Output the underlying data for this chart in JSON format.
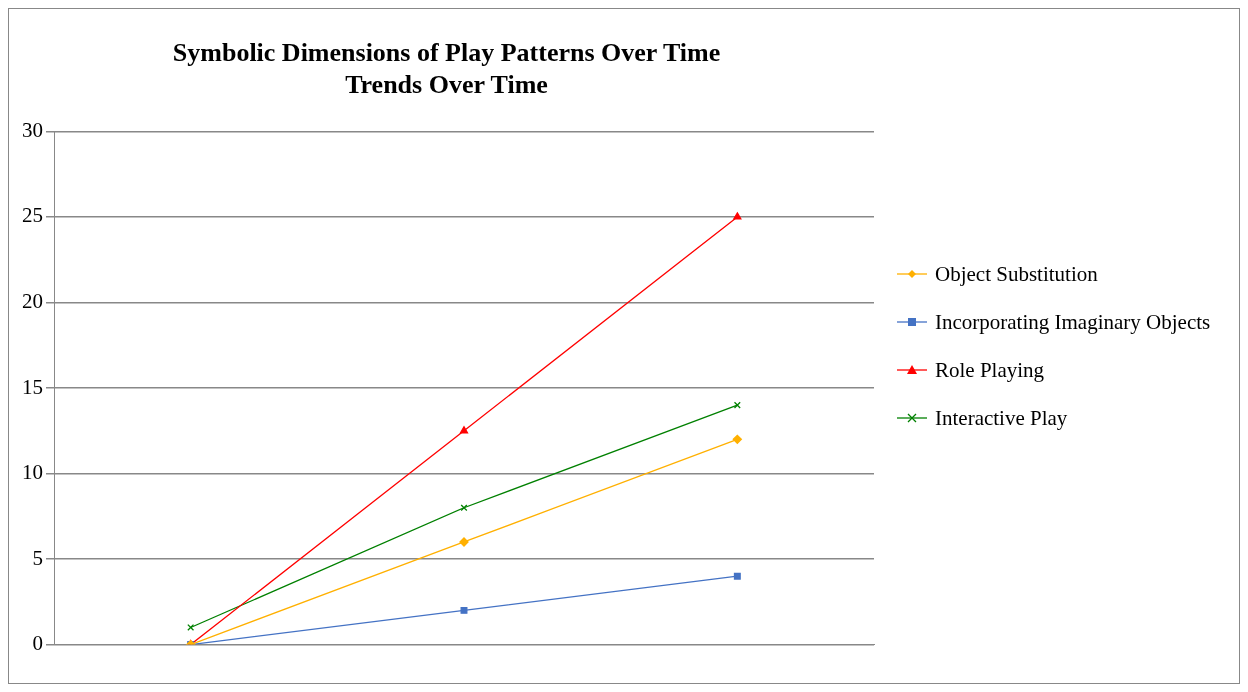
{
  "chart_data": {
    "type": "line",
    "title": "Symbolic Dimensions of Play Patterns Over Time",
    "subtitle": "Trends Over Time",
    "categories": [
      null,
      null,
      null
    ],
    "series": [
      {
        "name": "Object Substitution",
        "color": "#ffb000",
        "marker": "diamond",
        "values": [
          0,
          6,
          12
        ]
      },
      {
        "name": "Incorporating Imaginary Objects",
        "color": "#4472c4",
        "marker": "square",
        "values": [
          0,
          2,
          4
        ]
      },
      {
        "name": "Role Playing",
        "color": "#ff0000",
        "marker": "triangle",
        "values": [
          0,
          12.5,
          25
        ]
      },
      {
        "name": "Interactive Play",
        "color": "#008000",
        "marker": "cross",
        "values": [
          1,
          8,
          14
        ]
      }
    ],
    "ylim": [
      0,
      30
    ],
    "yticks": [
      0,
      5,
      10,
      15,
      20,
      25,
      30
    ],
    "grid": "y",
    "legend": "right"
  }
}
